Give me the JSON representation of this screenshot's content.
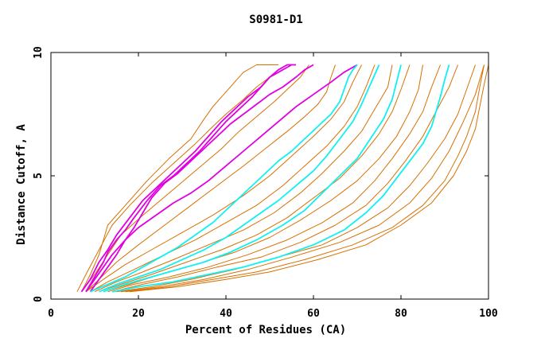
{
  "chart_data": {
    "type": "line",
    "title": "S0981-D1",
    "xlabel": "Percent of Residues (CA)",
    "ylabel": "Distance Cutoff, A",
    "xlim": [
      0,
      100
    ],
    "ylim": [
      0,
      10
    ],
    "x_ticks": [
      "0",
      "20",
      "40",
      "60",
      "80",
      "100"
    ],
    "y_ticks": [
      "0",
      "5",
      "10"
    ],
    "grid": false,
    "colors": {
      "orange": "#d77000",
      "magenta": "#e000e0",
      "cyan": "#10f0f0",
      "axis": "#000000"
    },
    "series": [
      {
        "name": "orange-1",
        "color": "orange",
        "x": [
          7,
          9,
          11,
          13,
          17,
          22,
          27,
          32,
          35,
          37,
          40,
          42,
          44,
          47,
          52
        ],
        "y": [
          0.3,
          1,
          1.8,
          3,
          3.8,
          4.8,
          5.7,
          6.5,
          7.3,
          7.8,
          8.4,
          8.8,
          9.2,
          9.5,
          9.5
        ]
      },
      {
        "name": "orange-2",
        "color": "orange",
        "x": [
          6,
          8,
          11,
          14,
          18,
          23,
          28,
          33,
          37,
          40,
          44,
          47,
          50,
          53,
          55
        ],
        "y": [
          0.3,
          1,
          2,
          3,
          3.8,
          4.7,
          5.5,
          6.3,
          7,
          7.5,
          8.1,
          8.6,
          9,
          9.3,
          9.5
        ]
      },
      {
        "name": "orange-3",
        "color": "orange",
        "x": [
          7,
          10,
          13,
          16,
          21,
          27,
          33,
          39,
          43,
          47,
          51,
          54,
          57,
          59
        ],
        "y": [
          0.3,
          1,
          1.8,
          2.6,
          3.4,
          4.3,
          5.2,
          6.1,
          6.8,
          7.4,
          8,
          8.5,
          9,
          9.5
        ]
      },
      {
        "name": "orange-4",
        "color": "orange",
        "x": [
          8,
          11,
          15,
          20,
          26,
          32,
          38,
          44,
          49,
          54,
          58,
          61,
          63,
          64,
          65
        ],
        "y": [
          0.3,
          0.8,
          1.5,
          2.2,
          3,
          3.8,
          4.6,
          5.4,
          6.1,
          6.8,
          7.4,
          7.9,
          8.4,
          9,
          9.5
        ]
      },
      {
        "name": "orange-5",
        "color": "orange",
        "x": [
          8,
          12,
          17,
          23,
          30,
          37,
          44,
          50,
          55,
          60,
          64,
          67,
          69,
          71
        ],
        "y": [
          0.3,
          0.8,
          1.4,
          2,
          2.7,
          3.4,
          4.2,
          5,
          5.8,
          6.6,
          7.3,
          8,
          8.8,
          9.5
        ]
      },
      {
        "name": "orange-6",
        "color": "orange",
        "x": [
          9,
          13,
          19,
          26,
          33,
          40,
          47,
          53,
          58,
          63,
          67,
          70,
          72,
          74
        ],
        "y": [
          0.3,
          0.7,
          1.2,
          1.8,
          2.4,
          3.1,
          3.8,
          4.6,
          5.4,
          6.2,
          7,
          7.8,
          8.6,
          9.5
        ]
      },
      {
        "name": "orange-7",
        "color": "orange",
        "x": [
          10,
          15,
          21,
          28,
          36,
          44,
          51,
          57,
          62,
          67,
          71,
          74,
          77,
          78
        ],
        "y": [
          0.3,
          0.7,
          1.1,
          1.6,
          2.2,
          2.8,
          3.5,
          4.3,
          5.1,
          6,
          6.8,
          7.7,
          8.6,
          9.5
        ]
      },
      {
        "name": "orange-8",
        "color": "orange",
        "x": [
          11,
          16,
          23,
          31,
          39,
          47,
          54,
          60,
          66,
          71,
          75,
          78,
          80,
          82
        ],
        "y": [
          0.3,
          0.6,
          1,
          1.5,
          2,
          2.6,
          3.3,
          4.1,
          4.9,
          5.8,
          6.7,
          7.6,
          8.5,
          9.5
        ]
      },
      {
        "name": "orange-9",
        "color": "orange",
        "x": [
          12,
          18,
          25,
          33,
          42,
          50,
          57,
          64,
          70,
          75,
          79,
          82,
          84,
          85
        ],
        "y": [
          0.3,
          0.6,
          1,
          1.4,
          1.9,
          2.5,
          3.2,
          4,
          4.8,
          5.7,
          6.6,
          7.6,
          8.5,
          9.5
        ]
      },
      {
        "name": "orange-10",
        "color": "orange",
        "x": [
          13,
          19,
          27,
          36,
          45,
          54,
          62,
          69,
          74,
          78,
          82,
          85,
          87,
          89
        ],
        "y": [
          0.3,
          0.6,
          0.9,
          1.3,
          1.8,
          2.4,
          3.1,
          3.9,
          4.8,
          5.7,
          6.7,
          7.6,
          8.6,
          9.5
        ]
      },
      {
        "name": "orange-11",
        "color": "orange",
        "x": [
          14,
          21,
          29,
          38,
          48,
          57,
          65,
          72,
          77,
          81,
          85,
          88,
          91,
          93
        ],
        "y": [
          0.3,
          0.6,
          0.9,
          1.3,
          1.7,
          2.3,
          3,
          3.8,
          4.7,
          5.6,
          6.6,
          7.6,
          8.6,
          9.5
        ]
      },
      {
        "name": "orange-12",
        "color": "orange",
        "x": [
          15,
          23,
          32,
          42,
          52,
          62,
          70,
          77,
          82,
          86,
          90,
          93,
          95,
          97
        ],
        "y": [
          0.3,
          0.5,
          0.8,
          1.2,
          1.7,
          2.2,
          2.9,
          3.7,
          4.6,
          5.5,
          6.5,
          7.5,
          8.5,
          9.5
        ]
      },
      {
        "name": "orange-13",
        "color": "orange",
        "x": [
          16,
          25,
          35,
          45,
          55,
          66,
          75,
          82,
          87,
          91,
          94,
          97,
          99
        ],
        "y": [
          0.3,
          0.5,
          0.8,
          1.2,
          1.7,
          2.3,
          3,
          3.9,
          4.9,
          6,
          7.1,
          8.3,
          9.5
        ]
      },
      {
        "name": "orange-14",
        "color": "orange",
        "x": [
          17,
          27,
          37,
          47,
          58,
          69,
          78,
          85,
          90,
          93,
          95,
          97,
          98,
          99
        ],
        "y": [
          0.3,
          0.5,
          0.8,
          1.1,
          1.6,
          2.2,
          2.9,
          3.8,
          4.8,
          5.8,
          6.6,
          7.6,
          8.6,
          9.5
        ]
      },
      {
        "name": "orange-15",
        "color": "orange",
        "x": [
          18,
          29,
          40,
          50,
          61,
          72,
          80,
          87,
          92,
          95,
          97,
          98,
          99,
          100
        ],
        "y": [
          0.3,
          0.5,
          0.8,
          1.1,
          1.6,
          2.2,
          3,
          3.9,
          5,
          6,
          6.9,
          7.8,
          8.7,
          9.5
        ]
      },
      {
        "name": "magenta-1",
        "color": "magenta",
        "x": [
          8,
          10,
          12,
          13,
          15,
          17,
          19,
          22,
          25,
          28,
          31,
          34,
          37,
          40,
          43,
          46,
          48,
          50,
          52,
          54,
          56
        ],
        "y": [
          0.3,
          0.9,
          1.5,
          1.9,
          2.4,
          2.8,
          3.3,
          4,
          4.6,
          5,
          5.5,
          6,
          6.6,
          7.2,
          7.7,
          8.2,
          8.6,
          9,
          9.3,
          9.5,
          9.5
        ]
      },
      {
        "name": "magenta-2",
        "color": "magenta",
        "x": [
          7,
          9,
          11,
          13,
          15,
          18,
          21,
          24,
          27,
          30,
          33,
          36,
          39,
          42,
          45,
          48,
          50,
          52,
          54,
          55
        ],
        "y": [
          0.3,
          0.8,
          1.5,
          2,
          2.6,
          3.3,
          4,
          4.5,
          5,
          5.5,
          6,
          6.6,
          7.2,
          7.7,
          8.2,
          8.6,
          9,
          9.2,
          9.4,
          9.5
        ]
      },
      {
        "name": "magenta-3",
        "color": "magenta",
        "x": [
          9,
          11,
          13,
          15,
          17,
          19,
          21,
          23,
          26,
          29,
          32,
          35,
          38,
          41,
          44,
          47,
          50,
          53,
          56,
          58,
          60
        ],
        "y": [
          0.3,
          0.8,
          1.3,
          1.8,
          2.4,
          2.9,
          3.5,
          4.1,
          4.7,
          5.1,
          5.6,
          6.1,
          6.6,
          7.1,
          7.5,
          7.9,
          8.3,
          8.6,
          9,
          9.3,
          9.5
        ]
      },
      {
        "name": "magenta-4",
        "color": "magenta",
        "x": [
          8,
          10,
          12,
          14,
          17,
          20,
          24,
          28,
          32,
          36,
          40,
          44,
          48,
          52,
          56,
          60,
          64,
          67,
          70
        ],
        "y": [
          0.3,
          0.8,
          1.3,
          1.8,
          2.4,
          2.9,
          3.4,
          3.9,
          4.3,
          4.8,
          5.4,
          6,
          6.6,
          7.2,
          7.8,
          8.3,
          8.8,
          9.2,
          9.5
        ]
      },
      {
        "name": "cyan-1",
        "color": "cyan",
        "x": [
          9,
          13,
          17,
          21,
          25,
          29,
          33,
          37,
          40,
          43,
          46,
          49,
          52,
          55,
          58,
          61,
          64,
          66,
          67,
          68,
          69,
          70
        ],
        "y": [
          0.3,
          0.6,
          0.9,
          1.3,
          1.7,
          2.1,
          2.6,
          3.1,
          3.6,
          4.1,
          4.6,
          5.1,
          5.6,
          6,
          6.5,
          7,
          7.5,
          8,
          8.5,
          9,
          9.3,
          9.5
        ]
      },
      {
        "name": "cyan-2",
        "color": "cyan",
        "x": [
          11,
          15,
          20,
          25,
          30,
          35,
          40,
          44,
          48,
          52,
          56,
          60,
          63,
          66,
          69,
          71,
          73,
          75
        ],
        "y": [
          0.3,
          0.6,
          0.9,
          1.2,
          1.6,
          2,
          2.5,
          3,
          3.5,
          4,
          4.6,
          5.2,
          5.8,
          6.5,
          7.2,
          7.9,
          8.7,
          9.5
        ]
      },
      {
        "name": "cyan-3",
        "color": "cyan",
        "x": [
          12,
          17,
          23,
          29,
          35,
          41,
          47,
          53,
          58,
          62,
          66,
          70,
          73,
          76,
          78,
          79,
          80
        ],
        "y": [
          0.3,
          0.6,
          0.9,
          1.2,
          1.5,
          1.9,
          2.4,
          3,
          3.6,
          4.3,
          5,
          5.7,
          6.5,
          7.3,
          8.1,
          8.8,
          9.5
        ]
      },
      {
        "name": "cyan-4",
        "color": "cyan",
        "x": [
          14,
          20,
          28,
          36,
          44,
          52,
          60,
          67,
          72,
          76,
          79,
          82,
          85,
          87,
          88,
          89,
          90,
          91
        ],
        "y": [
          0.3,
          0.5,
          0.7,
          1,
          1.3,
          1.7,
          2.2,
          2.8,
          3.5,
          4.2,
          4.9,
          5.6,
          6.3,
          7,
          7.6,
          8.2,
          8.9,
          9.5
        ]
      }
    ]
  }
}
